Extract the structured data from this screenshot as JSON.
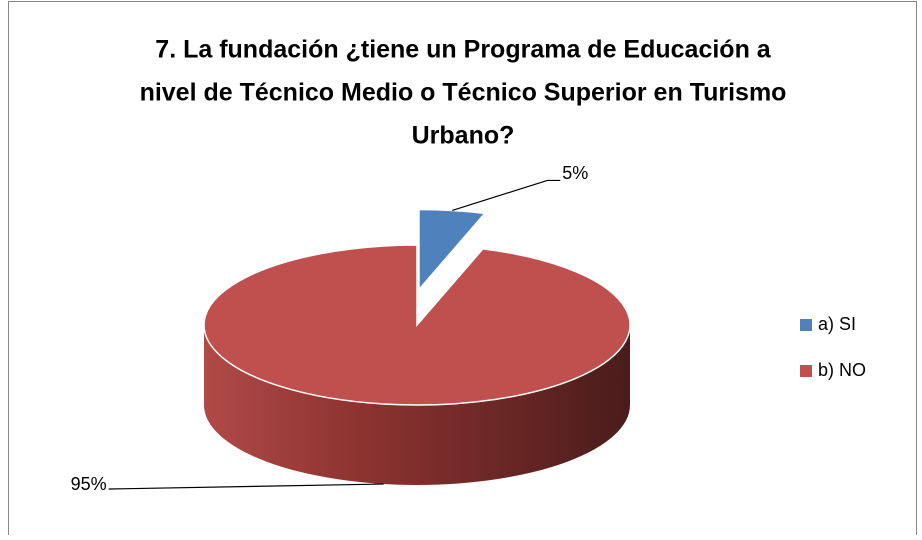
{
  "chart_data": {
    "type": "pie",
    "title_lines": [
      "7. La fundación ¿tiene un Programa de Educación a",
      "nivel de Técnico Medio o Técnico Superior en Turismo",
      "Urbano?"
    ],
    "categories": [
      "a) SI",
      "b) NO"
    ],
    "values": [
      5,
      95
    ],
    "value_labels": [
      "5%",
      "95%"
    ],
    "colors": [
      "#4f81bd",
      "#c0504d"
    ],
    "legend": "right"
  }
}
